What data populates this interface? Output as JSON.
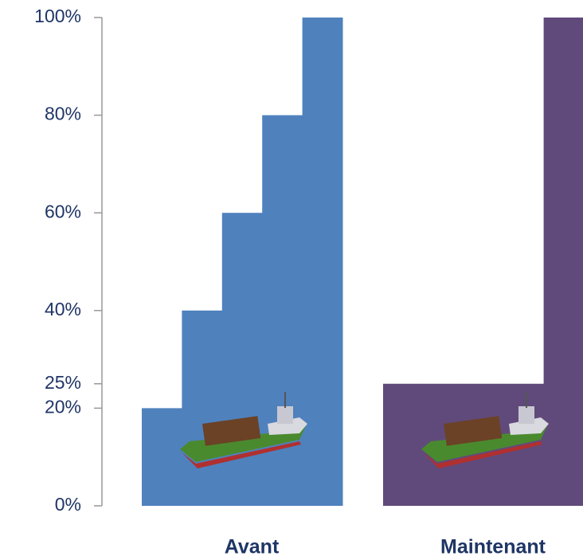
{
  "chart_data": {
    "type": "bar",
    "categories": [
      "Avant",
      "Maintenant"
    ],
    "values": [
      [
        20,
        40,
        60,
        80,
        100
      ],
      [
        25,
        25,
        25,
        25,
        100
      ]
    ],
    "colors": [
      "#4f81bd",
      "#604a7b"
    ],
    "ylim": [
      0,
      100
    ],
    "yticks": [
      {
        "value": 0,
        "label": "0%"
      },
      {
        "value": 20,
        "label": "20%"
      },
      {
        "value": 25,
        "label": "25%"
      },
      {
        "value": 40,
        "label": "40%"
      },
      {
        "value": 60,
        "label": "60%"
      },
      {
        "value": 80,
        "label": "80%"
      },
      {
        "value": 100,
        "label": "100%"
      }
    ]
  }
}
